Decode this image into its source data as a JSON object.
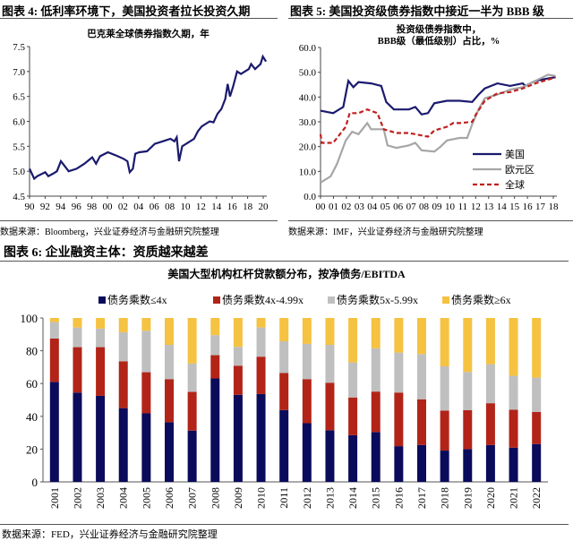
{
  "fig4": {
    "header": "图表 4:  低利率环境下，美国投资者拉长投资久期",
    "source": "数据来源：Bloomberg，兴业证券经济与金融研究院整理"
  },
  "fig5": {
    "header": "图表 5:  美国投资级债券指数中接近一半为 BBB 级",
    "source": "数据来源：IMF，兴业证券经济与金融研究院整理"
  },
  "fig6": {
    "header": "图表 6:  企业融资主体：资质越来越差",
    "source": "数据来源：FED，兴业证券经济与金融研究院整理"
  },
  "chart_data": [
    {
      "type": "line",
      "title": "巴克莱全球债券指数久期，年",
      "ylim": [
        4.5,
        7.5
      ],
      "yticks": [
        "4.5",
        "5.0",
        "5.5",
        "6.0",
        "6.5",
        "7.0",
        "7.5"
      ],
      "xticks": [
        "90",
        "92",
        "94",
        "96",
        "98",
        "00",
        "02",
        "04",
        "06",
        "08",
        "10",
        "12",
        "14",
        "16",
        "18",
        "20"
      ],
      "xlim": [
        1990,
        2020.3
      ],
      "color": "#1a1a6e",
      "x": [
        1990,
        1990.3,
        1990.6,
        1991,
        1992,
        1992.4,
        1993,
        1993.5,
        1994,
        1994.5,
        1995,
        1996,
        1997,
        1998,
        1998.5,
        1999,
        2000,
        2001,
        2002,
        2002.5,
        2002.8,
        2003.2,
        2003.5,
        2004,
        2005,
        2006,
        2007,
        2008,
        2008.5,
        2008.8,
        2009.1,
        2009.5,
        2010,
        2011,
        2011.5,
        2012,
        2013,
        2013.5,
        2014,
        2014.5,
        2015,
        2015.3,
        2015.6,
        2016,
        2016.5,
        2017,
        2017.5,
        2018,
        2018.3,
        2018.8,
        2019.5,
        2019.8,
        2020,
        2020.2
      ],
      "y": [
        5.05,
        4.95,
        4.85,
        4.9,
        4.98,
        4.9,
        4.95,
        5.0,
        5.2,
        5.1,
        5.0,
        5.05,
        5.15,
        5.28,
        5.15,
        5.3,
        5.38,
        5.32,
        5.25,
        5.2,
        4.98,
        5.05,
        5.35,
        5.38,
        5.4,
        5.55,
        5.6,
        5.65,
        5.6,
        5.68,
        5.2,
        5.5,
        5.55,
        5.65,
        5.8,
        5.9,
        6.0,
        5.98,
        6.15,
        6.25,
        6.45,
        6.75,
        6.5,
        6.7,
        7.0,
        6.95,
        7.0,
        7.05,
        7.15,
        7.05,
        7.15,
        7.3,
        7.25,
        7.2
      ]
    },
    {
      "type": "line",
      "title": [
        "投资级债券指数中，",
        "BBB级（最低级别）占比，%"
      ],
      "ylim": [
        0,
        60
      ],
      "yticks": [
        "0.0",
        "10.0",
        "20.0",
        "30.0",
        "40.0",
        "50.0",
        "60.0"
      ],
      "xticks": [
        "00",
        "01",
        "02",
        "03",
        "04",
        "05",
        "06",
        "07",
        "08",
        "09",
        "10",
        "11",
        "12",
        "13",
        "14",
        "15",
        "16",
        "17",
        "18"
      ],
      "xlim": [
        2000,
        2018.7
      ],
      "legend": "bottom-right",
      "series": [
        {
          "name": "美国",
          "color": "#1a1a6e",
          "style": "solid",
          "x": [
            2000,
            2001,
            2001.8,
            2002.2,
            2002.6,
            2003,
            2004,
            2004.8,
            2005.2,
            2005.8,
            2006,
            2007,
            2007.5,
            2008,
            2008.5,
            2009,
            2010,
            2011,
            2012,
            2012.5,
            2013,
            2013.5,
            2014,
            2015,
            2016,
            2016.2,
            2017,
            2018,
            2018.6
          ],
          "y": [
            34.5,
            33.5,
            36,
            46.5,
            44,
            46,
            45.5,
            44.5,
            38,
            35,
            35,
            35,
            36,
            33,
            33.5,
            37.5,
            38.5,
            38.5,
            38,
            41,
            43.5,
            44.5,
            45.5,
            44.5,
            45.5,
            44.5,
            46.5,
            47.5,
            48
          ]
        },
        {
          "name": "欧元区",
          "color": "#a6a6a6",
          "style": "solid",
          "x": [
            2000,
            2000.8,
            2001.3,
            2002,
            2002.5,
            2003,
            2003.7,
            2004,
            2005,
            2005.3,
            2006,
            2007,
            2007.5,
            2008,
            2009,
            2009.5,
            2010,
            2011,
            2011.6,
            2012,
            2012.5,
            2013,
            2014,
            2015,
            2016,
            2017,
            2018,
            2018.6
          ],
          "y": [
            5.5,
            8,
            13,
            22.5,
            26,
            25,
            29.5,
            27,
            27,
            20.5,
            19.5,
            20.5,
            21.5,
            18.5,
            18,
            20,
            22.5,
            23.5,
            23.5,
            29,
            35,
            39.5,
            41,
            43,
            44,
            46.5,
            49,
            48.5
          ]
        },
        {
          "name": "全球",
          "color": "#c0201e",
          "style": "dashed",
          "x": [
            2000,
            2000.1,
            2001,
            2002,
            2002.3,
            2003,
            2003.7,
            2004.5,
            2005,
            2006,
            2007,
            2008,
            2008.5,
            2009,
            2010,
            2010.5,
            2011,
            2012,
            2012.3,
            2013,
            2014,
            2015,
            2016,
            2017,
            2018,
            2018.6
          ],
          "y": [
            25,
            21.5,
            21.5,
            28,
            33.5,
            33.5,
            35,
            33.5,
            27,
            25.5,
            25.5,
            24.5,
            24,
            26.5,
            28,
            29.5,
            29.5,
            30,
            33,
            38.5,
            41.5,
            42,
            43.5,
            45.5,
            47,
            48
          ]
        }
      ]
    },
    {
      "type": "bar",
      "stacked": true,
      "title": "美国大型机构杠杆贷款额分布，按净债务/EBITDA",
      "ylim": [
        0,
        100
      ],
      "yticks": [
        "0",
        "20",
        "40",
        "60",
        "80",
        "100"
      ],
      "legend": "top",
      "categories": [
        "2001",
        "2002",
        "2003",
        "2004",
        "2005",
        "2006",
        "2007",
        "2008",
        "2009",
        "2010",
        "2011",
        "2012",
        "2013",
        "2014",
        "2015",
        "2016",
        "2017",
        "2018",
        "2019",
        "2020",
        "2021",
        "2022"
      ],
      "series": [
        {
          "name": "债务乘数≤4x",
          "color": "#0b0b5c",
          "values": [
            61,
            54.5,
            52.5,
            45,
            41.8,
            36.4,
            31.3,
            63.1,
            53.1,
            53.6,
            43.8,
            35.8,
            31.5,
            28.5,
            30.4,
            21.8,
            22.5,
            19.1,
            20,
            22.5,
            20.9,
            23.1
          ]
        },
        {
          "name": "债务乘数4x-4.99x",
          "color": "#b22418",
          "values": [
            26.5,
            27.7,
            29.7,
            28.6,
            25.1,
            26.3,
            23.6,
            14.2,
            17.8,
            22.8,
            22.6,
            26.9,
            29,
            23,
            24.7,
            32.7,
            27.9,
            24.4,
            23.8,
            25.5,
            23.1,
            19.6
          ]
        },
        {
          "name": "债务乘数5x-5.99x",
          "color": "#bfbfbf",
          "values": [
            10,
            12,
            11.3,
            17.7,
            25.3,
            20.9,
            17.3,
            12.2,
            11.5,
            17.8,
            19.4,
            21.5,
            23.1,
            21.4,
            26.4,
            24.4,
            27.6,
            27,
            23.3,
            23.8,
            20.7,
            20.9
          ]
        },
        {
          "name": "债务乘数≥6x",
          "color": "#f5c242",
          "values": [
            2.5,
            5.8,
            6.5,
            8.7,
            7.8,
            16.4,
            27.8,
            10.5,
            17.6,
            5.8,
            14.2,
            15.8,
            16.4,
            27.1,
            18.5,
            21.1,
            22,
            29.5,
            32.9,
            28.2,
            35.3,
            36.4
          ]
        }
      ]
    }
  ]
}
